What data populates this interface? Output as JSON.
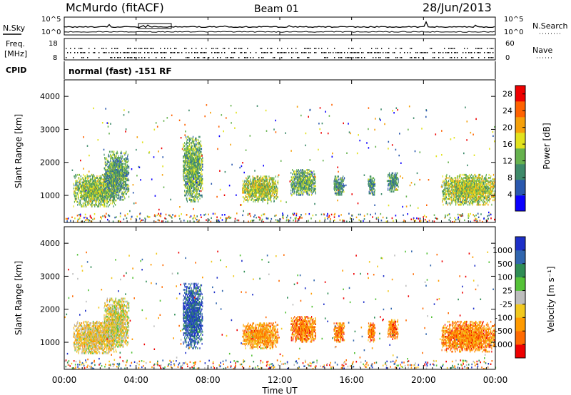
{
  "header": {
    "title": "McMurdo (fitACF)",
    "beam": "Beam 01",
    "date": "28/Jun/2013"
  },
  "status_panel": {
    "n_sky_label": "N.Sky",
    "n_search_label": "N.Search",
    "freq_label": "Freq.",
    "freq_unit": "[MHz]",
    "nave_label": "Nave",
    "cpid_label": "CPID",
    "left_ticks_top": [
      "10^5",
      "10^0"
    ],
    "right_ticks_top": [
      "10^5",
      "10^0"
    ],
    "left_ticks_freq": [
      "18",
      "8"
    ],
    "right_ticks_nave": [
      "60",
      "0"
    ],
    "cpid_text": "normal (fast) -151 RF"
  },
  "x_axis": {
    "label": "Time UT",
    "ticks": [
      "00:00",
      "04:00",
      "08:00",
      "12:00",
      "16:00",
      "20:00",
      "00:00"
    ]
  },
  "chart_data": [
    {
      "type": "heatmap",
      "title": "",
      "xlabel": "Time UT",
      "ylabel": "Slant Range [km]",
      "x_range_hours": [
        0,
        24
      ],
      "ylim": [
        180,
        4500
      ],
      "yticks": [
        "1000",
        "2000",
        "3000",
        "4000"
      ],
      "colorbar": {
        "label": "Power [dB]",
        "ticks": [
          "4",
          "8",
          "12",
          "16",
          "20",
          "24",
          "28"
        ],
        "range": [
          0,
          30
        ],
        "colors": [
          "#0b00ff",
          "#2a58ae",
          "#3e8a6a",
          "#66b24e",
          "#e2e21d",
          "#f5a00a",
          "#ff6200",
          "#ee0000"
        ]
      },
      "echo_regions": [
        {
          "t0": 0.5,
          "t1": 2.9,
          "r0": 650,
          "r1": 1650,
          "intensity": 0.45
        },
        {
          "t0": 2.2,
          "t1": 3.6,
          "r0": 850,
          "r1": 2350,
          "intensity": 0.35
        },
        {
          "t0": 6.6,
          "t1": 7.7,
          "r0": 800,
          "r1": 2800,
          "intensity": 0.4
        },
        {
          "t0": 9.9,
          "t1": 11.9,
          "r0": 800,
          "r1": 1600,
          "intensity": 0.5
        },
        {
          "t0": 12.6,
          "t1": 14.0,
          "r0": 1000,
          "r1": 1800,
          "intensity": 0.4
        },
        {
          "t0": 15.0,
          "t1": 15.6,
          "r0": 1000,
          "r1": 1600,
          "intensity": 0.3
        },
        {
          "t0": 16.9,
          "t1": 17.3,
          "r0": 1000,
          "r1": 1600,
          "intensity": 0.3
        },
        {
          "t0": 18.0,
          "t1": 18.6,
          "r0": 1100,
          "r1": 1700,
          "intensity": 0.3
        },
        {
          "t0": 21.0,
          "t1": 24.0,
          "r0": 700,
          "r1": 1650,
          "intensity": 0.5
        }
      ]
    },
    {
      "type": "heatmap",
      "title": "",
      "xlabel": "Time UT",
      "ylabel": "Slant Range [km]",
      "x_range_hours": [
        0,
        24
      ],
      "ylim": [
        180,
        4500
      ],
      "yticks": [
        "1000",
        "2000",
        "3000",
        "4000"
      ],
      "colorbar": {
        "label": "Velocity [m s⁻¹]",
        "ticks": [
          "1000",
          "500",
          "100",
          "25",
          "-25",
          "-100",
          "-500",
          "-1000"
        ],
        "colors": [
          "#1d2fc8",
          "#3166ae",
          "#2f8d55",
          "#55c238",
          "#bdbdbd",
          "#f1c81e",
          "#ff9a00",
          "#ff6a00",
          "#ee0000"
        ]
      },
      "echo_regions": [
        {
          "t0": 0.5,
          "t1": 2.9,
          "r0": 650,
          "r1": 1650,
          "intensity": 0.6
        },
        {
          "t0": 2.2,
          "t1": 3.6,
          "r0": 850,
          "r1": 2350,
          "intensity": 0.55
        },
        {
          "t0": 6.6,
          "t1": 7.7,
          "r0": 800,
          "r1": 2800,
          "intensity": 0.1
        },
        {
          "t0": 9.9,
          "t1": 11.9,
          "r0": 800,
          "r1": 1600,
          "intensity": 0.75
        },
        {
          "t0": 12.6,
          "t1": 14.0,
          "r0": 1000,
          "r1": 1800,
          "intensity": 0.8
        },
        {
          "t0": 15.0,
          "t1": 15.6,
          "r0": 1000,
          "r1": 1600,
          "intensity": 0.8
        },
        {
          "t0": 16.9,
          "t1": 17.3,
          "r0": 1000,
          "r1": 1600,
          "intensity": 0.8
        },
        {
          "t0": 18.0,
          "t1": 18.6,
          "r0": 1100,
          "r1": 1700,
          "intensity": 0.8
        },
        {
          "t0": 21.0,
          "t1": 24.0,
          "r0": 700,
          "r1": 1650,
          "intensity": 0.8
        }
      ]
    }
  ]
}
